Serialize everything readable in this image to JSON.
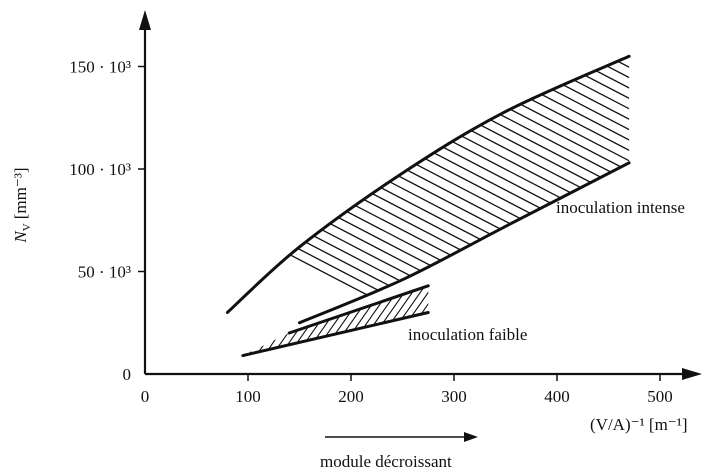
{
  "chart_data": {
    "type": "area",
    "ylabel": "N",
    "ylabel_sub": "V",
    "ylabel_unit": "[mm⁻³]",
    "xlabel": "(V/A)⁻¹ [m⁻¹]",
    "x_ticks": [
      "0",
      "100",
      "200",
      "300",
      "400",
      "500"
    ],
    "y_ticks": [
      "0",
      "50 · 10³",
      "100 · 10³",
      "150 · 10³"
    ],
    "xlim": [
      0,
      530
    ],
    "ylim": [
      0,
      170000
    ],
    "annotation_arrow": "module décroissant",
    "series": [
      {
        "name": "inoculation intense",
        "upper": {
          "x": [
            80,
            150,
            250,
            350,
            470
          ],
          "y": [
            30000,
            62000,
            98000,
            128000,
            155000
          ]
        },
        "lower": {
          "x": [
            150,
            250,
            350,
            470
          ],
          "y": [
            25000,
            46000,
            72000,
            103000
          ]
        }
      },
      {
        "name": "inoculation faible",
        "upper": {
          "x": [
            140,
            275
          ],
          "y": [
            20000,
            43000
          ]
        },
        "lower": {
          "x": [
            95,
            275
          ],
          "y": [
            9000,
            30000
          ]
        }
      }
    ],
    "grid": false
  }
}
